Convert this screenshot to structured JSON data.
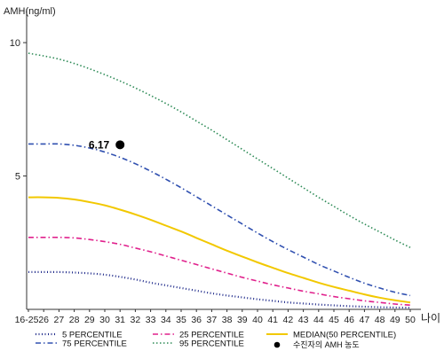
{
  "chart_data": {
    "type": "line",
    "ylabel": "AMH(ng/ml)",
    "xlabel": "나이",
    "ylim": [
      0,
      11
    ],
    "yticks": [
      5,
      10
    ],
    "categories": [
      "16-25",
      "26",
      "27",
      "28",
      "29",
      "30",
      "31",
      "32",
      "33",
      "34",
      "35",
      "36",
      "37",
      "38",
      "39",
      "40",
      "41",
      "42",
      "43",
      "44",
      "45",
      "46",
      "47",
      "48",
      "49",
      "50"
    ],
    "series": [
      {
        "name": "5 PERCENTILE",
        "color": "#1f2a8a",
        "dash": "1,2.5",
        "width": 2.2,
        "values": [
          1.4,
          1.4,
          1.4,
          1.38,
          1.35,
          1.3,
          1.22,
          1.12,
          1.0,
          0.9,
          0.8,
          0.7,
          0.6,
          0.52,
          0.45,
          0.38,
          0.32,
          0.26,
          0.22,
          0.18,
          0.15,
          0.12,
          0.1,
          0.08,
          0.07,
          0.06
        ]
      },
      {
        "name": "25 PERCENTILE",
        "color": "#e0208c",
        "dash": "6,3,1.5,3",
        "width": 1.6,
        "values": [
          2.7,
          2.7,
          2.7,
          2.68,
          2.62,
          2.54,
          2.44,
          2.3,
          2.16,
          2.0,
          1.84,
          1.68,
          1.52,
          1.36,
          1.2,
          1.06,
          0.92,
          0.8,
          0.68,
          0.58,
          0.48,
          0.4,
          0.32,
          0.26,
          0.2,
          0.16
        ]
      },
      {
        "name": "MEDIAN(50 PERCENTILE)",
        "color": "#f2c800",
        "dash": "",
        "width": 2,
        "values": [
          4.2,
          4.2,
          4.18,
          4.12,
          4.02,
          3.9,
          3.74,
          3.56,
          3.36,
          3.14,
          2.92,
          2.68,
          2.44,
          2.2,
          1.98,
          1.76,
          1.56,
          1.36,
          1.18,
          1.0,
          0.84,
          0.7,
          0.56,
          0.44,
          0.34,
          0.26
        ]
      },
      {
        "name": "75 PERCENTILE",
        "color": "#3050b0",
        "dash": "6,3,1.5,3",
        "width": 1.6,
        "values": [
          6.2,
          6.2,
          6.2,
          6.15,
          6.05,
          5.9,
          5.7,
          5.46,
          5.18,
          4.88,
          4.56,
          4.22,
          3.88,
          3.54,
          3.2,
          2.86,
          2.54,
          2.24,
          1.96,
          1.68,
          1.44,
          1.2,
          0.98,
          0.8,
          0.64,
          0.52
        ]
      },
      {
        "name": "95 PERCENTILE",
        "color": "#2e8b57",
        "dash": "1.5,2.5",
        "width": 1.6,
        "values": [
          9.6,
          9.5,
          9.38,
          9.22,
          9.02,
          8.8,
          8.56,
          8.3,
          8.02,
          7.72,
          7.4,
          7.06,
          6.72,
          6.36,
          6.0,
          5.64,
          5.28,
          4.92,
          4.56,
          4.2,
          3.86,
          3.52,
          3.2,
          2.9,
          2.6,
          2.32
        ]
      }
    ],
    "points": [
      {
        "name": "수진자의 AMH 농도",
        "x": "31",
        "y": 6.17,
        "label": "6.17",
        "color": "#000000"
      }
    ],
    "legend_position": "bottom",
    "grid": false
  }
}
